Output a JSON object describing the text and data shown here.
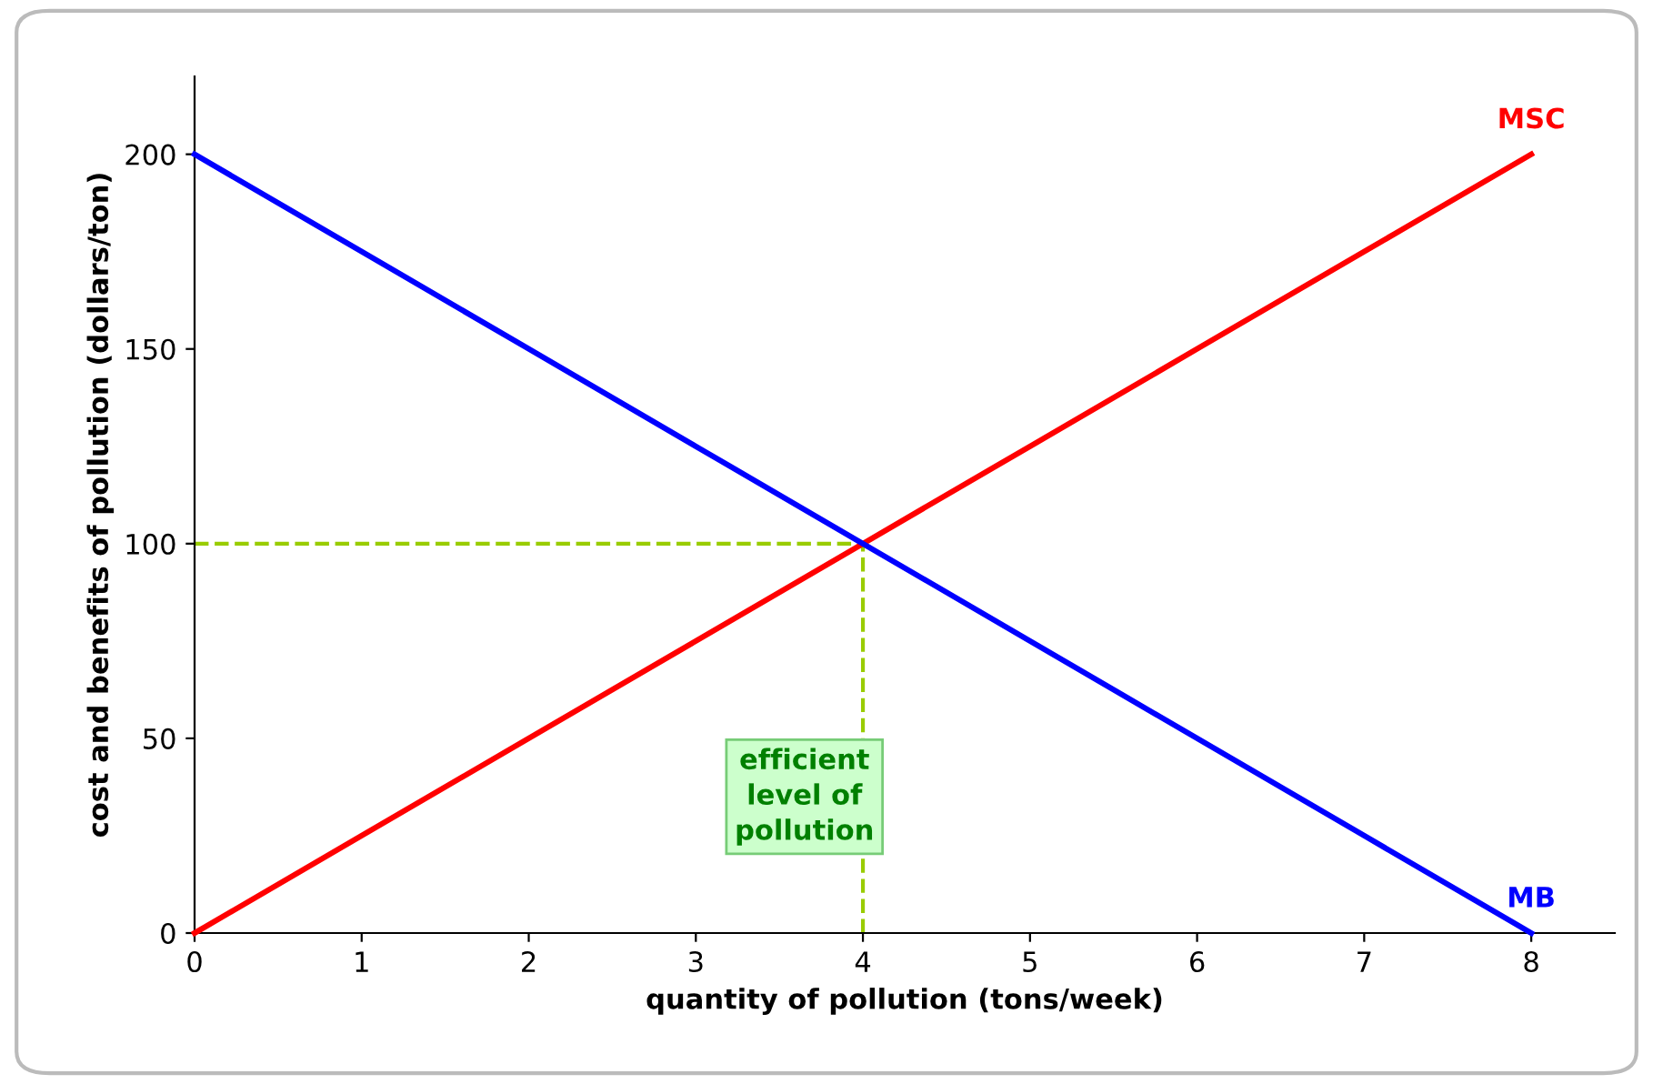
{
  "chart_data": {
    "type": "line",
    "xlabel": "quantity of pollution (tons/week)",
    "ylabel": "cost and benefits of pollution (dollars/ton)",
    "xlim": [
      0,
      8.5
    ],
    "xticks": [
      0,
      1,
      2,
      3,
      4,
      5,
      6,
      7,
      8
    ],
    "ylim": [
      0,
      220
    ],
    "yticks": [
      0,
      50,
      100,
      150,
      200
    ],
    "grid": false,
    "legend": false,
    "marker": "none",
    "series": [
      {
        "name": "MSC",
        "color": "#ff0000",
        "x": [
          0,
          1,
          2,
          3,
          4,
          5,
          6,
          7,
          8
        ],
        "values": [
          0,
          25,
          50,
          75,
          100,
          125,
          150,
          175,
          200
        ]
      },
      {
        "name": "MB",
        "color": "#0000ff",
        "x": [
          0,
          1,
          2,
          3,
          4,
          5,
          6,
          7,
          8
        ],
        "values": [
          200,
          175,
          150,
          125,
          100,
          75,
          50,
          25,
          0
        ]
      },
      {
        "color": "#99cc00",
        "line_style": "dashed",
        "x": [
          0,
          4
        ],
        "values": [
          100,
          100
        ]
      },
      {
        "color": "#99cc00",
        "line_style": "dashed",
        "x": [
          4,
          4
        ],
        "values": [
          0,
          100
        ]
      }
    ],
    "annotations": [
      "efficient\nlevel of\npollution"
    ]
  }
}
